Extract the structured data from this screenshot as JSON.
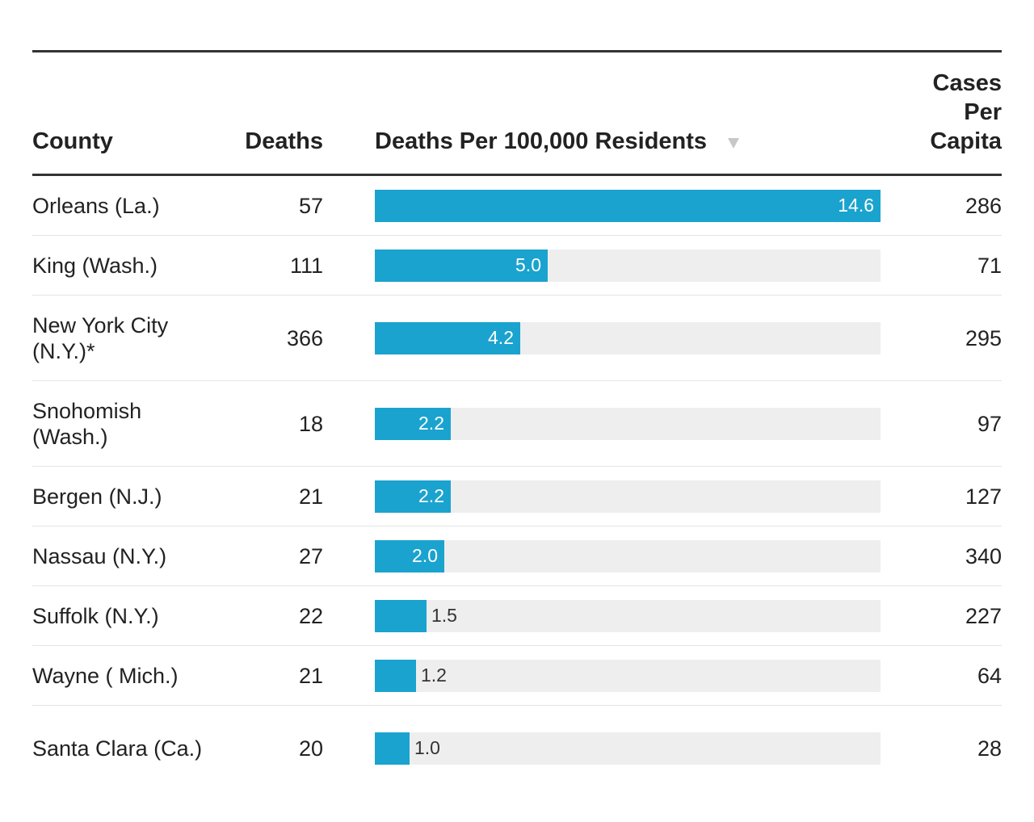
{
  "colors": {
    "bar": "#1aa3cf",
    "track": "#eeeeee",
    "rule": "#333333",
    "sort_icon": "#c8c8c8"
  },
  "header": {
    "county": "County",
    "deaths": "Deaths",
    "rate": "Deaths Per 100,000 Residents",
    "cases": "Cases Per Capita",
    "sort_icon": "sort-descending-icon"
  },
  "chart_data": {
    "type": "table",
    "columns": [
      "County",
      "Deaths",
      "Deaths Per 100,000 Residents",
      "Cases Per Capita"
    ],
    "bar_column": "Deaths Per 100,000 Residents",
    "bar_max": 14.6,
    "rows": [
      {
        "county": "Orleans (La.)",
        "deaths": "57",
        "rate": 14.6,
        "rate_label": "14.6",
        "cases": "286"
      },
      {
        "county": "King (Wash.)",
        "deaths": "111",
        "rate": 5.0,
        "rate_label": "5.0",
        "cases": "71"
      },
      {
        "county": "New York City (N.Y.)*",
        "deaths": "366",
        "rate": 4.2,
        "rate_label": "4.2",
        "cases": "295"
      },
      {
        "county": "Snohomish (Wash.)",
        "deaths": "18",
        "rate": 2.2,
        "rate_label": "2.2",
        "cases": "97"
      },
      {
        "county": "Bergen (N.J.)",
        "deaths": "21",
        "rate": 2.2,
        "rate_label": "2.2",
        "cases": "127"
      },
      {
        "county": "Nassau (N.Y.)",
        "deaths": "27",
        "rate": 2.0,
        "rate_label": "2.0",
        "cases": "340"
      },
      {
        "county": "Suffolk (N.Y.)",
        "deaths": "22",
        "rate": 1.5,
        "rate_label": "1.5",
        "cases": "227"
      },
      {
        "county": "Wayne ( Mich.)",
        "deaths": "21",
        "rate": 1.2,
        "rate_label": "1.2",
        "cases": "64"
      },
      {
        "county": "Santa Clara (Ca.)",
        "deaths": "20",
        "rate": 1.0,
        "rate_label": "1.0",
        "cases": "28"
      }
    ]
  }
}
